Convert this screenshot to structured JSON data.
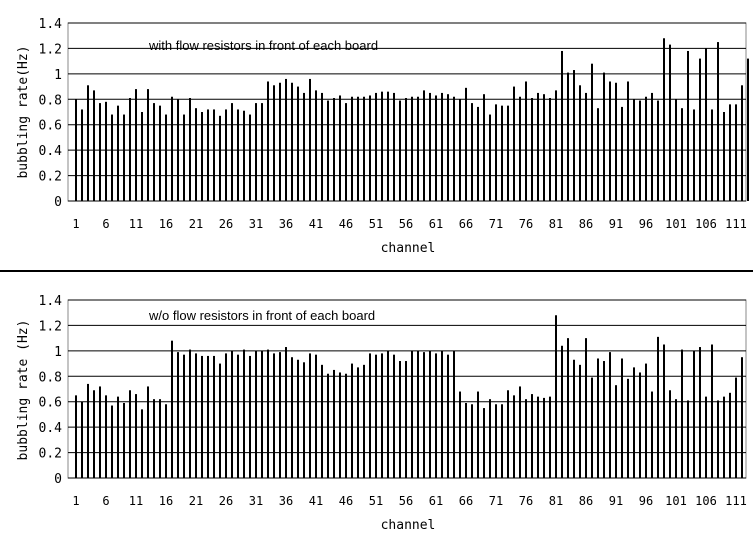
{
  "chart_data": [
    {
      "type": "bar",
      "annotation": "with flow resistors in front of each board",
      "xlabel": "channel",
      "ylabel": "bubbling rate(Hz)",
      "ylim": [
        0,
        1.4
      ],
      "yticks": [
        "0",
        "0.2",
        "0.4",
        "0.6",
        "0.8",
        "1",
        "1.2",
        "1.4"
      ],
      "xlim": [
        1,
        112
      ],
      "xticks": [
        "1",
        "6",
        "11",
        "16",
        "21",
        "26",
        "31",
        "36",
        "41",
        "46",
        "51",
        "56",
        "61",
        "66",
        "71",
        "76",
        "81",
        "86",
        "91",
        "96",
        "101",
        "106",
        "111"
      ],
      "grid": "horizontal",
      "values": [
        0.8,
        0.72,
        0.91,
        0.87,
        0.77,
        0.78,
        0.68,
        0.75,
        0.68,
        0.81,
        0.88,
        0.7,
        0.88,
        0.77,
        0.75,
        0.68,
        0.82,
        0.8,
        0.68,
        0.81,
        0.73,
        0.7,
        0.72,
        0.72,
        0.67,
        0.72,
        0.77,
        0.72,
        0.71,
        0.68,
        0.77,
        0.77,
        0.94,
        0.91,
        0.93,
        0.96,
        0.93,
        0.9,
        0.85,
        0.96,
        0.87,
        0.85,
        0.79,
        0.81,
        0.83,
        0.77,
        0.82,
        0.82,
        0.82,
        0.83,
        0.85,
        0.86,
        0.86,
        0.85,
        0.79,
        0.81,
        0.82,
        0.82,
        0.87,
        0.85,
        0.83,
        0.85,
        0.84,
        0.82,
        0.8,
        0.89,
        0.77,
        0.74,
        0.84,
        0.68,
        0.76,
        0.75,
        0.75,
        0.9,
        0.82,
        0.94,
        0.81,
        0.85,
        0.84,
        0.81,
        0.87,
        1.18,
        1.01,
        1.03,
        0.91,
        0.85,
        1.08,
        0.73,
        1.01,
        0.94,
        0.93,
        0.74,
        0.94,
        0.8,
        0.79,
        0.82,
        0.85,
        0.79,
        1.28,
        1.23,
        0.8,
        0.73,
        1.18,
        0.72,
        1.12,
        1.2,
        0.72,
        1.25,
        0.7,
        0.76,
        0.76,
        0.91,
        1.12
      ]
    },
    {
      "type": "bar",
      "annotation": "w/o flow resistors in front of each board",
      "xlabel": "channel",
      "ylabel": "bubbling rate (Hz)",
      "ylim": [
        0,
        1.4
      ],
      "yticks": [
        "0",
        "0.2",
        "0.4",
        "0.6",
        "0.8",
        "1",
        "1.2",
        "1.4"
      ],
      "xlim": [
        1,
        112
      ],
      "xticks": [
        "1",
        "6",
        "11",
        "16",
        "21",
        "26",
        "31",
        "36",
        "41",
        "46",
        "51",
        "56",
        "61",
        "66",
        "71",
        "76",
        "81",
        "86",
        "91",
        "96",
        "101",
        "106",
        "111"
      ],
      "grid": "horizontal",
      "values": [
        0.65,
        0.6,
        0.74,
        0.69,
        0.72,
        0.65,
        0.57,
        0.64,
        0.59,
        0.69,
        0.66,
        0.54,
        0.72,
        0.62,
        0.62,
        0.58,
        1.08,
        0.99,
        0.97,
        1.01,
        0.98,
        0.96,
        0.96,
        0.96,
        0.9,
        0.98,
        1.0,
        0.97,
        1.01,
        0.96,
        1.0,
        1.0,
        1.01,
        0.98,
        0.99,
        1.03,
        0.95,
        0.93,
        0.91,
        0.98,
        0.97,
        0.89,
        0.82,
        0.85,
        0.83,
        0.82,
        0.9,
        0.87,
        0.89,
        0.98,
        0.97,
        0.98,
        1.0,
        0.97,
        0.92,
        0.92,
        1.0,
        1.0,
        0.99,
        1.0,
        0.98,
        1.0,
        0.97,
        1.0,
        0.68,
        0.59,
        0.58,
        0.68,
        0.55,
        0.62,
        0.58,
        0.58,
        0.69,
        0.65,
        0.72,
        0.62,
        0.66,
        0.64,
        0.63,
        0.64,
        1.28,
        1.04,
        1.1,
        0.93,
        0.89,
        1.1,
        0.79,
        0.94,
        0.92,
        0.99,
        0.73,
        0.94,
        0.78,
        0.87,
        0.83,
        0.9,
        0.68,
        1.11,
        1.05,
        0.69,
        0.62,
        1.01,
        0.61,
        1.0,
        1.03,
        0.64,
        1.05,
        0.61,
        0.64,
        0.67,
        0.79,
        0.95
      ]
    }
  ]
}
